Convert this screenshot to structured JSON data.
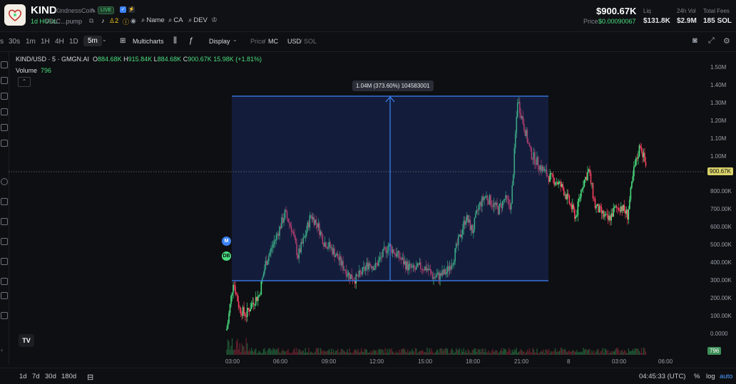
{
  "header": {
    "symbol": "KIND",
    "name": "KindnessCoin",
    "live_badge": "LIVE",
    "hodl": "1d HODL",
    "address": "V5cC...pump",
    "holders_count": "2",
    "links": [
      "Name",
      "CA",
      "DEV"
    ],
    "market_cap": "$900.67K",
    "price_label": "Price",
    "price": "$0.00090067",
    "stats": [
      {
        "label": "Liq",
        "value": "$131.8K"
      },
      {
        "label": "24h Vol",
        "value": "$2.9M"
      },
      {
        "label": "Total Fees",
        "value": "185 SOL"
      }
    ]
  },
  "toolbar": {
    "timeframes": [
      "s",
      "30s",
      "1m",
      "1H",
      "4H",
      "1D"
    ],
    "active_timeframe": "5m",
    "multicharts": "Multicharts",
    "display": "Display",
    "price_label": "Price",
    "mc_label": "MC",
    "usd_label": "USD",
    "sol_label": "SOL"
  },
  "legend": {
    "pair": "KIND/USD · 5 · GMGN.AI",
    "o_label": "O",
    "o": "884.68K",
    "h_label": "H",
    "h": "915.84K",
    "l_label": "L",
    "l": "884.68K",
    "c_label": "C",
    "c": "900.67K",
    "change": "15.98K (+1.81%)",
    "volume_label": "Volume",
    "volume": "796"
  },
  "measure": {
    "tooltip": "1.04M (373.60%) 104583001"
  },
  "markers": [
    {
      "label": "M",
      "color": "#3b82f6"
    },
    {
      "label": "DB",
      "color": "#4ade80"
    }
  ],
  "current_price_tag": "900.67K",
  "volume_tag": "796",
  "chart_data": {
    "type": "candlestick",
    "y_ticks": [
      "1.50M",
      "1.40M",
      "1.30M",
      "1.20M",
      "1.10M",
      "1.00M",
      "900.00K",
      "800.00K",
      "700.00K",
      "600.00K",
      "500.00K",
      "400.00K",
      "300.00K",
      "200.00K",
      "100.00K",
      "0.0000"
    ],
    "x_ticks": [
      "03:00",
      "06:00",
      "09:00",
      "12:00",
      "15:00",
      "18:00",
      "21:00",
      "8",
      "03:00",
      "06:00"
    ],
    "ylim": [
      0,
      1500000
    ],
    "close_series": [
      0,
      280000,
      120000,
      90000,
      160000,
      200000,
      380000,
      470000,
      560000,
      660000,
      580000,
      420000,
      520000,
      650000,
      600000,
      500000,
      470000,
      420000,
      360000,
      310000,
      290000,
      330000,
      380000,
      360000,
      420000,
      480000,
      440000,
      400000,
      360000,
      340000,
      360000,
      350000,
      300000,
      310000,
      330000,
      400000,
      520000,
      640000,
      560000,
      700000,
      760000,
      720000,
      680000,
      740000,
      700000,
      1300000,
      1150000,
      1000000,
      950000,
      900000,
      860000,
      840000,
      800000,
      720000,
      640000,
      820000,
      900000,
      700000,
      660000,
      620000,
      680000,
      700000,
      650000,
      900000,
      1050000,
      900670
    ]
  },
  "bottom": {
    "ranges": [
      "1d",
      "7d",
      "30d",
      "180d"
    ],
    "clock": "04:45:33 (UTC)",
    "percent": "%",
    "log": "log",
    "auto": "auto"
  }
}
